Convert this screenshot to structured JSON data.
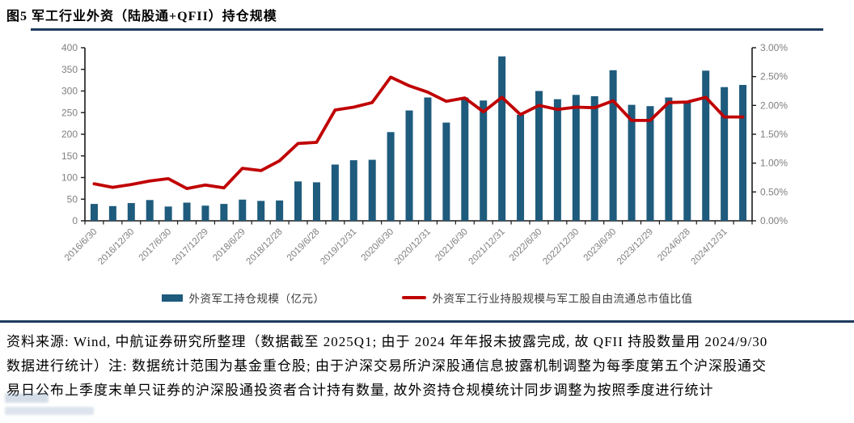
{
  "title": "图5 军工行业外资（陆股通+QFII）持仓规模",
  "chart_data": {
    "type": "bar",
    "subtype": "combo-bar-line-dual-axis",
    "n_bars": 36,
    "x_tick_labels": [
      "2016/6/30",
      "2016/12/30",
      "2017/6/30",
      "2017/12/29",
      "2018/6/29",
      "2018/12/28",
      "2019/6/28",
      "2019/12/31",
      "2020/6/30",
      "2020/12/31",
      "2021/6/30",
      "2021/12/31",
      "2022/6/30",
      "2022/12/30",
      "2023/6/30",
      "2023/12/29",
      "2024/6/28",
      "2024/12/31"
    ],
    "x_label_every": 2,
    "series": [
      {
        "name": "外资军工持仓规模（亿元）",
        "type": "bar",
        "axis": "left",
        "color": "#1E5B7D",
        "values": [
          39,
          34,
          41,
          48,
          33,
          42,
          35,
          39,
          49,
          46,
          47,
          91,
          89,
          130,
          140,
          141,
          205,
          255,
          285,
          227,
          285,
          278,
          380,
          245,
          300,
          281,
          291,
          288,
          348,
          268,
          265,
          285,
          276,
          347,
          309,
          314
        ]
      },
      {
        "name": "外资军工行业持股规模与军工股自由流通总市值比值",
        "type": "line",
        "axis": "right",
        "color": "#C00000",
        "values": [
          0.64,
          0.58,
          0.63,
          0.69,
          0.73,
          0.56,
          0.62,
          0.57,
          0.91,
          0.87,
          1.04,
          1.34,
          1.36,
          1.92,
          1.97,
          2.05,
          2.49,
          2.34,
          2.23,
          2.07,
          2.13,
          1.89,
          2.14,
          1.84,
          2.0,
          1.93,
          1.97,
          1.96,
          2.08,
          1.74,
          1.74,
          2.05,
          2.06,
          2.14,
          1.8,
          1.8
        ]
      }
    ],
    "left_axis": {
      "min": 0,
      "max": 400,
      "step": 50,
      "tick_labels": [
        "0",
        "50",
        "100",
        "150",
        "200",
        "250",
        "300",
        "350",
        "400"
      ]
    },
    "right_axis": {
      "min": 0,
      "max": 3,
      "step": 0.5,
      "tick_labels": [
        "0.00%",
        "0.50%",
        "1.00%",
        "1.50%",
        "2.00%",
        "2.50%",
        "3.00%"
      ]
    },
    "grid": "off",
    "legend_position": "bottom"
  },
  "footer": {
    "lines": [
      "资料来源: Wind, 中航证券研究所整理（数据截至 2025Q1; 由于 2024 年年报未披露完成, 故 QFII 持股数量用 2024/9/30",
      "数据进行统计）注: 数据统计范围为基金重仓股; 由于沪深交易所沪深股通信息披露机制调整为每季度第五个沪深股通交",
      "易日公布上季度末单只证券的沪深股通投资者合计持有数量, 故外资持仓规模统计同步调整为按照季度进行统计"
    ]
  },
  "colors": {
    "bar": "#1E5B7D",
    "line": "#C00000",
    "divider": "#1F3A5F",
    "axis_label": "#7F7F7F",
    "axis_line": "#1A1A1A"
  }
}
